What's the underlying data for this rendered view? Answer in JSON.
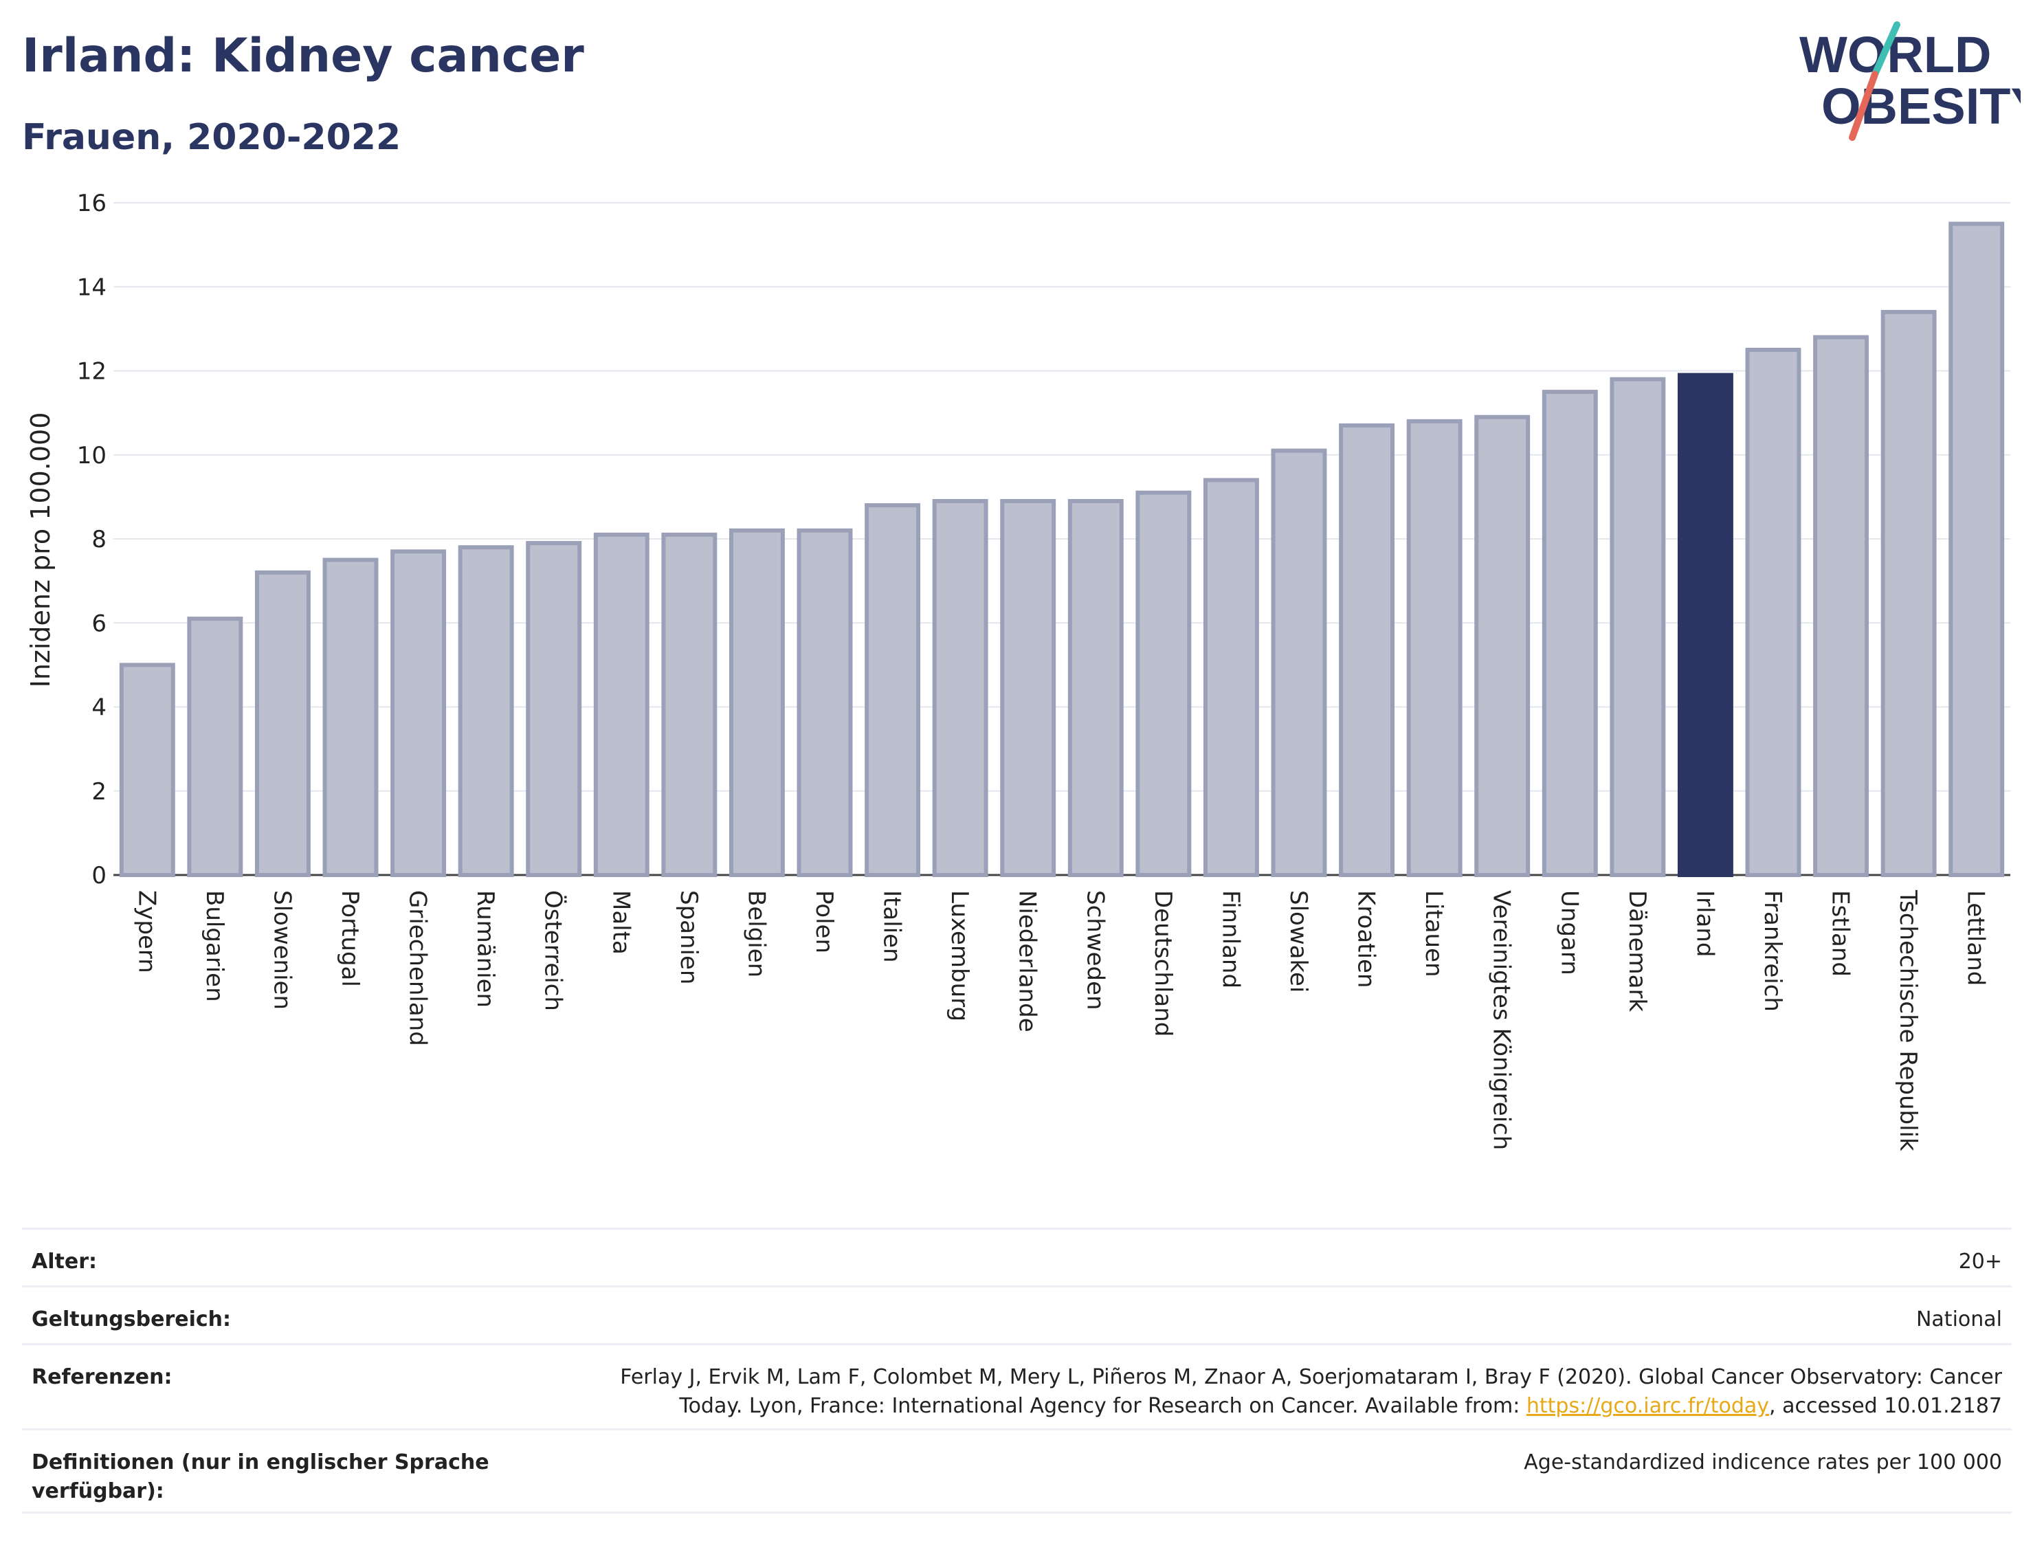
{
  "header": {
    "title": "Irland: Kidney cancer",
    "subtitle": "Frauen, 2020-2022"
  },
  "logo": {
    "line1": "WORLD",
    "line2": "OBESITY",
    "accent_colors": [
      "#3fbfb3",
      "#e4675a"
    ]
  },
  "chart_data": {
    "type": "bar",
    "title": "Irland: Kidney cancer",
    "subtitle": "Frauen, 2020-2022",
    "ylabel": "Inzidenz pro 100.000",
    "ylim": [
      0,
      16
    ],
    "yticks": [
      0,
      2,
      4,
      6,
      8,
      10,
      12,
      14,
      16
    ],
    "grid": true,
    "highlight": "Irland",
    "colors": {
      "bar": "#bcc0ce",
      "bar_border": "#9aa0b8",
      "highlight": "#2b3561"
    },
    "categories": [
      "Zypern",
      "Bulgarien",
      "Slowenien",
      "Portugal",
      "Griechenland",
      "Rumänien",
      "Österreich",
      "Malta",
      "Spanien",
      "Belgien",
      "Polen",
      "Italien",
      "Luxemburg",
      "Niederlande",
      "Schweden",
      "Deutschland",
      "Finnland",
      "Slowakei",
      "Kroatien",
      "Litauen",
      "Vereinigtes Königreich",
      "Ungarn",
      "Dänemark",
      "Irland",
      "Frankreich",
      "Estland",
      "Tschechische Republik",
      "Lettland"
    ],
    "values": [
      5.0,
      6.1,
      7.2,
      7.5,
      7.7,
      7.8,
      7.9,
      8.1,
      8.1,
      8.2,
      8.2,
      8.8,
      8.9,
      8.9,
      8.9,
      9.1,
      9.4,
      10.1,
      10.7,
      10.8,
      10.9,
      11.5,
      11.8,
      11.9,
      12.5,
      12.8,
      13.4,
      15.5
    ]
  },
  "meta": {
    "age_label": "Alter:",
    "age_value": "20+",
    "scope_label": "Geltungsbereich:",
    "scope_value": "National",
    "ref_label": "Referenzen:",
    "ref_text_1": "Ferlay J, Ervik M, Lam F, Colombet M, Mery L, Piñeros M, Znaor A, Soerjomataram I, Bray F (2020). Global Cancer Observatory: Cancer Today. Lyon, France: International Agency for Research on Cancer. Available from: ",
    "ref_link": "https://gco.iarc.fr/today",
    "ref_text_2": ", accessed 10.01.2187",
    "def_label": "Definitionen (nur in englischer Sprache verfügbar):",
    "def_value": "Age-standardized indicence rates per 100 000"
  }
}
